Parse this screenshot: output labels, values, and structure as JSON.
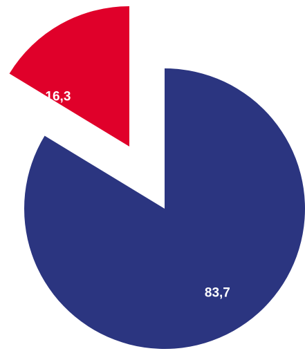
{
  "chart_data": {
    "type": "pie",
    "exploded": true,
    "slices": [
      {
        "label": "16,3",
        "value": 16.3,
        "color": "#E0002A"
      },
      {
        "label": "83,7",
        "value": 83.7,
        "color": "#2B3580"
      }
    ]
  }
}
